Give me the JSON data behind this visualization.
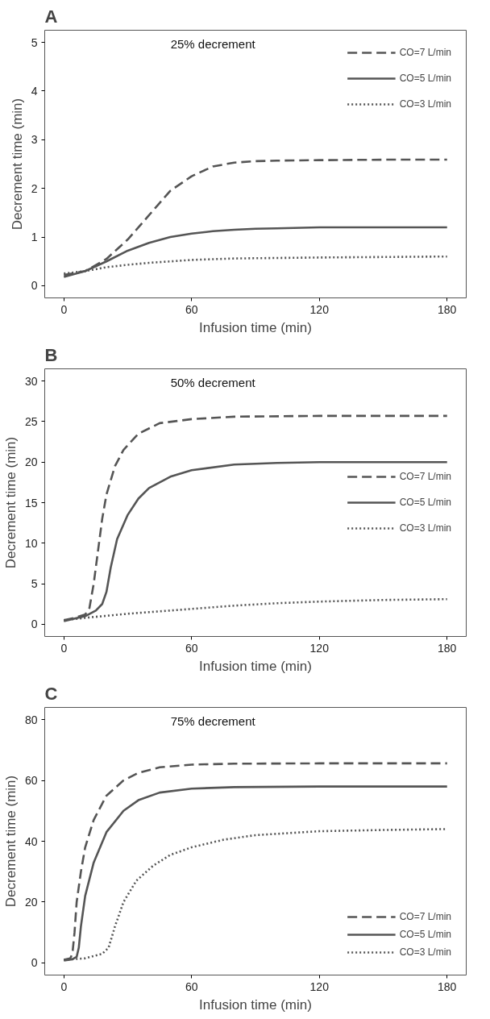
{
  "chart_data": [
    {
      "type": "line",
      "title": "A",
      "annotations": [
        "25% decrement"
      ],
      "xlabel": "Infusion time (min)",
      "ylabel": "Decrement time (min)",
      "xlim": [
        -9,
        189
      ],
      "xticks": [
        0,
        60,
        120,
        180
      ],
      "ylim": [
        -0.25,
        5.25
      ],
      "yticks": [
        0,
        1,
        2,
        3,
        4,
        5
      ],
      "grid": false,
      "legend": "top right",
      "series": [
        {
          "name": "CO=7 L/min",
          "color": "#555555",
          "line_style": "dashed",
          "x": [
            0,
            10,
            20,
            30,
            40,
            50,
            60,
            70,
            80,
            90,
            100,
            120,
            150,
            180
          ],
          "values": [
            0.22,
            0.3,
            0.55,
            0.95,
            1.45,
            1.95,
            2.25,
            2.45,
            2.53,
            2.56,
            2.57,
            2.58,
            2.59,
            2.59
          ]
        },
        {
          "name": "CO=5 L/min",
          "color": "#555555",
          "line_style": "solid",
          "x": [
            0,
            10,
            20,
            30,
            40,
            50,
            60,
            70,
            80,
            90,
            100,
            120,
            180
          ],
          "values": [
            0.18,
            0.3,
            0.5,
            0.72,
            0.88,
            1.0,
            1.07,
            1.12,
            1.15,
            1.17,
            1.18,
            1.2,
            1.2
          ]
        },
        {
          "name": "CO=3 L/min",
          "color": "#555555",
          "line_style": "dotted",
          "x": [
            0,
            10,
            20,
            30,
            40,
            60,
            80,
            100,
            120,
            180
          ],
          "values": [
            0.25,
            0.3,
            0.38,
            0.43,
            0.47,
            0.53,
            0.56,
            0.57,
            0.58,
            0.6
          ]
        }
      ]
    },
    {
      "type": "line",
      "title": "B",
      "annotations": [
        "50% decrement"
      ],
      "xlabel": "Infusion time (min)",
      "ylabel": "Decrement time (min)",
      "xlim": [
        -9,
        189
      ],
      "xticks": [
        0,
        60,
        120,
        180
      ],
      "ylim": [
        -1.5,
        31.5
      ],
      "yticks": [
        0,
        5,
        10,
        15,
        20,
        25,
        30
      ],
      "grid": false,
      "legend": "right",
      "series": [
        {
          "name": "CO=7 L/min",
          "color": "#555555",
          "line_style": "dashed",
          "x": [
            0,
            5,
            10,
            12,
            14,
            16,
            18,
            20,
            24,
            28,
            35,
            45,
            60,
            80,
            120,
            180
          ],
          "values": [
            0.5,
            0.8,
            1.2,
            2,
            5,
            9,
            13,
            16,
            19.5,
            21.5,
            23.5,
            24.8,
            25.3,
            25.6,
            25.7,
            25.7
          ]
        },
        {
          "name": "CO=5 L/min",
          "color": "#555555",
          "line_style": "solid",
          "x": [
            0,
            10,
            15,
            18,
            20,
            22,
            25,
            30,
            35,
            40,
            50,
            60,
            80,
            100,
            120,
            180
          ],
          "values": [
            0.4,
            1.0,
            1.7,
            2.5,
            4,
            7,
            10.5,
            13.5,
            15.5,
            16.8,
            18.2,
            19,
            19.7,
            19.9,
            20,
            20
          ]
        },
        {
          "name": "CO=3 L/min",
          "color": "#555555",
          "line_style": "dotted",
          "x": [
            0,
            10,
            30,
            60,
            80,
            100,
            120,
            150,
            180
          ],
          "values": [
            0.5,
            0.8,
            1.3,
            1.9,
            2.3,
            2.6,
            2.8,
            3.0,
            3.1
          ]
        }
      ]
    },
    {
      "type": "line",
      "title": "C",
      "annotations": [
        "75% decrement"
      ],
      "xlabel": "Infusion time (min)",
      "ylabel": "Decrement time (min)",
      "xlim": [
        -9,
        189
      ],
      "xticks": [
        0,
        60,
        120,
        180
      ],
      "ylim": [
        -4,
        84
      ],
      "yticks": [
        0,
        20,
        40,
        60,
        80
      ],
      "grid": false,
      "legend": "bottom right",
      "series": [
        {
          "name": "CO=7 L/min",
          "color": "#555555",
          "line_style": "dashed",
          "x": [
            0,
            3,
            4,
            5,
            6,
            8,
            10,
            14,
            20,
            28,
            35,
            45,
            60,
            80,
            120,
            180
          ],
          "values": [
            1,
            1.5,
            3,
            10,
            20,
            30,
            38,
            47,
            55,
            60,
            62.5,
            64.3,
            65.2,
            65.5,
            65.6,
            65.6
          ]
        },
        {
          "name": "CO=5 L/min",
          "color": "#555555",
          "line_style": "solid",
          "x": [
            0,
            4,
            6,
            7,
            8,
            10,
            14,
            20,
            28,
            35,
            45,
            60,
            80,
            120,
            180
          ],
          "values": [
            0.8,
            1.2,
            2,
            5,
            12,
            22,
            33,
            43,
            50,
            53.5,
            56,
            57.3,
            57.8,
            58,
            58
          ]
        },
        {
          "name": "CO=3 L/min",
          "color": "#555555",
          "line_style": "dotted",
          "x": [
            0,
            10,
            18,
            21,
            24,
            28,
            34,
            42,
            50,
            60,
            75,
            90,
            120,
            150,
            180
          ],
          "values": [
            1,
            1.5,
            3,
            5,
            12,
            20,
            27,
            32,
            35.5,
            38,
            40.5,
            42,
            43.3,
            43.7,
            44
          ]
        }
      ]
    }
  ]
}
